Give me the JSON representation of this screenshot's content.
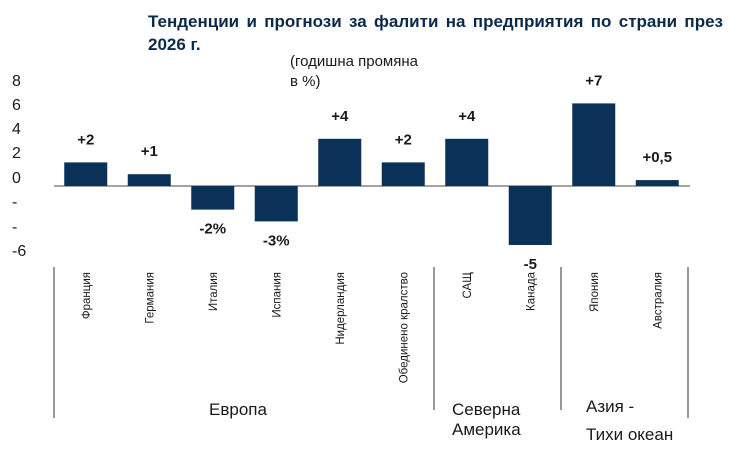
{
  "chart_data": {
    "type": "bar",
    "title": "Тенденции и прогнози за фалити на предприятия по страни през 2026 г.",
    "subtitle": "(годишна промяна в %)",
    "y_tick_labels": [
      "8",
      "6",
      "4",
      "2",
      "0",
      "-",
      "-",
      "-6"
    ],
    "ylim": [
      -6,
      8
    ],
    "bar_color": "#0a3158",
    "categories": [
      "Франция",
      "Германия",
      "Италия",
      "Испания",
      "Нидерландия",
      "Обединено кралство",
      "САЩ",
      "Канада",
      "Япония",
      "Австралия"
    ],
    "values": [
      2,
      1,
      -2,
      -3,
      4,
      2,
      4,
      -5,
      7,
      0.5
    ],
    "data_labels": [
      "+2",
      "+1",
      "-2%",
      "-3%",
      "+4",
      "+2",
      "+4",
      "-5",
      "+7",
      "+0,5"
    ],
    "groups": [
      {
        "name": "Европа",
        "count": 6
      },
      {
        "name": "Северна Америка",
        "count": 2
      },
      {
        "name": "Азия - Тихи океан",
        "count": 2
      }
    ],
    "grid": false,
    "legend": "none"
  }
}
